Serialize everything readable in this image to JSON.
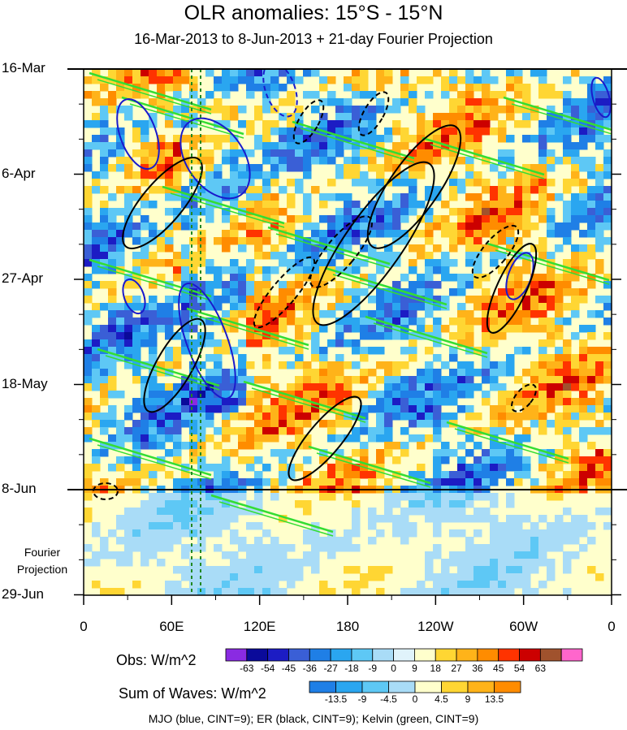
{
  "chart_data": {
    "type": "heatmap",
    "title": "OLR anomalies: 15°S - 15°N",
    "subtitle": "16-Mar-2013 to 8-Jun-2013 + 21-day Fourier Projection",
    "y_ticks": [
      "16-Mar",
      "6-Apr",
      "27-Apr",
      "18-May",
      "8-Jun",
      "29-Jun"
    ],
    "x_ticks": [
      "0",
      "60E",
      "120E",
      "180",
      "120W",
      "60W",
      "0"
    ],
    "x_range_deg": [
      0,
      360
    ],
    "projection_label": [
      "Fourier",
      "Projection"
    ],
    "obs_colorbar": {
      "title": "Obs: W/m^2",
      "levels": [
        "-63",
        "-54",
        "-45",
        "-36",
        "-27",
        "-18",
        "-9",
        "0",
        "9",
        "18",
        "27",
        "36",
        "45",
        "54",
        "63"
      ],
      "colors": [
        "#8a2be2",
        "#0a0a9a",
        "#1c1cc4",
        "#3a5fd6",
        "#1f7fe6",
        "#2aa6f0",
        "#5ec8f5",
        "#a9dcf7",
        "#e0f3fb",
        "#ffffcc",
        "#ffd633",
        "#ffb319",
        "#ff8c00",
        "#ff3300",
        "#cc0000",
        "#a0522d",
        "#ff66cc"
      ]
    },
    "waves_colorbar": {
      "title": "Sum of Waves: W/m^2",
      "levels": [
        "-13.5",
        "-9",
        "-4.5",
        "0",
        "4.5",
        "9",
        "13.5"
      ],
      "colors": [
        "#1f7fe6",
        "#2aa6f0",
        "#5ec8f5",
        "#a9dcf7",
        "#ffffcc",
        "#ffd633",
        "#ffb319",
        "#ff8c00"
      ]
    },
    "footer": "MJO (blue, CINT=9); ER (black, CINT=9); Kelvin (green, CINT=9)",
    "series_colors": {
      "MJO": "#1a1acc",
      "ER": "#000000",
      "Kelvin": "#33dd33"
    }
  }
}
